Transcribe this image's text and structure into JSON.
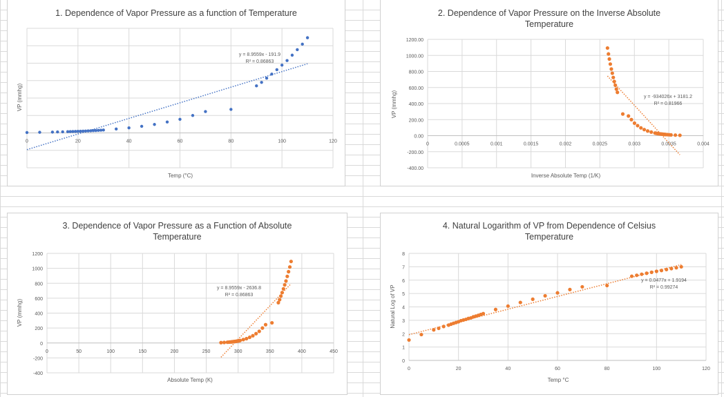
{
  "chart_data": [
    {
      "type": "scatter",
      "title": "1. Dependence of Vapor Pressure as a function of Temperature",
      "xlabel": "Temp (°C)",
      "ylabel": "VP (mmhg)",
      "xlim": [
        0,
        120
      ],
      "ylim": [
        -400,
        1200
      ],
      "xticks": [
        0,
        20,
        40,
        60,
        80,
        100,
        120
      ],
      "yticks": [
        -400,
        -200,
        0,
        200,
        400,
        600,
        800,
        1000,
        1200
      ],
      "ytick_labels_shown": false,
      "grid": true,
      "marker_color": "#4472c4",
      "trendline": {
        "slope": 8.9559,
        "intercept": -191.9,
        "xrange": [
          0,
          110
        ],
        "equation": "y = 8.9559x - 191.9",
        "r2": "R² = 0.86863"
      },
      "x": [
        0,
        5,
        10,
        12,
        14,
        16,
        17,
        18,
        19,
        20,
        21,
        22,
        23,
        24,
        25,
        26,
        27,
        28,
        29,
        30,
        35,
        40,
        45,
        50,
        55,
        60,
        65,
        70,
        80,
        90,
        92,
        94,
        96,
        98,
        100,
        102,
        104,
        106,
        108,
        110
      ],
      "y": [
        4.6,
        6.9,
        9.8,
        11,
        12.6,
        14,
        15,
        16,
        17,
        18,
        19.5,
        20.5,
        21.5,
        23,
        24,
        26,
        27.5,
        29,
        31,
        33,
        45,
        58,
        76,
        97,
        125,
        156,
        200,
        245,
        270,
        540,
        580,
        628,
        675,
        725,
        778,
        830,
        892,
        955,
        1018,
        1092
      ]
    },
    {
      "type": "scatter",
      "title": "2. Dependence of Vapor Pressure on the Inverse Absolute Temperature",
      "title_lines": [
        "2. Dependence of Vapor Pressure on the Inverse Absolute",
        "Temperature"
      ],
      "xlabel": "Inverse Absolute Temp (1/K)",
      "ylabel": "VP (mmhg)",
      "xlim": [
        0,
        0.004
      ],
      "ylim": [
        -400,
        1200
      ],
      "xticks": [
        "0",
        "0.0005",
        "0.001",
        "0.0015",
        "0.002",
        "0.0025",
        "0.003",
        "0.0035",
        "0.004"
      ],
      "yticks": [
        "-400.00",
        "-200.00",
        "0.00",
        "200.00",
        "400.00",
        "600.00",
        "800.00",
        "1000.00",
        "1200.00"
      ],
      "grid": true,
      "marker_color": "#ed7d31",
      "trendline": {
        "slope": -934026,
        "intercept": 3181.2,
        "xrange": [
          0.00261,
          0.00366
        ],
        "equation": "y = -934026x + 3181.2",
        "r2": "R² = 0.81966"
      },
      "x": [
        0.003661,
        0.003595,
        0.003532,
        0.003507,
        0.003482,
        0.003458,
        0.003447,
        0.003435,
        0.003423,
        0.003411,
        0.0034,
        0.003388,
        0.003377,
        0.003365,
        0.003354,
        0.003343,
        0.003332,
        0.003321,
        0.00331,
        0.003299,
        0.003245,
        0.003193,
        0.003143,
        0.003095,
        0.003047,
        0.003002,
        0.002957,
        0.002914,
        0.002832,
        0.002754,
        0.002739,
        0.002724,
        0.002709,
        0.002694,
        0.00268,
        0.002666,
        0.002651,
        0.002637,
        0.002624,
        0.00261
      ],
      "y": [
        4.6,
        6.9,
        9.8,
        11,
        12.6,
        14,
        15,
        16,
        17,
        18,
        19.5,
        20.5,
        21.5,
        23,
        24,
        26,
        27.5,
        29,
        31,
        33,
        45,
        58,
        76,
        97,
        125,
        156,
        200,
        245,
        270,
        540,
        580,
        628,
        675,
        725,
        778,
        830,
        892,
        955,
        1018,
        1092
      ]
    },
    {
      "type": "scatter",
      "title": "3. Dependence of Vapor Pressure as a Function of Absolute Temperature",
      "title_lines": [
        "3. Dependence of Vapor Pressure as a Function of Absolute",
        "Temperature"
      ],
      "xlabel": "Absolute Temp (K)",
      "ylabel": "VP (mmhg)",
      "xlim": [
        0,
        450
      ],
      "ylim": [
        -400,
        1200
      ],
      "xticks": [
        "0",
        "50",
        "100",
        "150",
        "200",
        "250",
        "300",
        "350",
        "400",
        "450"
      ],
      "yticks": [
        "-400",
        "-200",
        "0",
        "200",
        "400",
        "600",
        "800",
        "1000",
        "1200"
      ],
      "grid": true,
      "marker_color": "#ed7d31",
      "trendline": {
        "slope": 8.9559,
        "intercept": -2636.8,
        "xrange": [
          273.15,
          383.15
        ],
        "equation": "y = 8.9559x - 2636.8",
        "r2": "R² = 0.86863"
      },
      "x": [
        273.15,
        278.15,
        283.15,
        285.15,
        287.15,
        289.15,
        290.15,
        291.15,
        292.15,
        293.15,
        294.15,
        295.15,
        296.15,
        297.15,
        298.15,
        299.15,
        300.15,
        301.15,
        302.15,
        303.15,
        308.15,
        313.15,
        318.15,
        323.15,
        328.15,
        333.15,
        338.15,
        343.15,
        353.15,
        363.15,
        365.15,
        367.15,
        369.15,
        371.15,
        373.15,
        375.15,
        377.15,
        379.15,
        381.15,
        383.15
      ],
      "y": [
        4.6,
        6.9,
        9.8,
        11,
        12.6,
        14,
        15,
        16,
        17,
        18,
        19.5,
        20.5,
        21.5,
        23,
        24,
        26,
        27.5,
        29,
        31,
        33,
        45,
        58,
        76,
        97,
        125,
        156,
        200,
        245,
        270,
        540,
        580,
        628,
        675,
        725,
        778,
        830,
        892,
        955,
        1018,
        1092
      ]
    },
    {
      "type": "scatter",
      "title": "4. Natural Logarithm of VP from Dependence of Celsius Temperature",
      "title_lines": [
        "4. Natural Logarithm of VP from Dependence of Celsius",
        "Temperature"
      ],
      "xlabel": "Temp °C",
      "ylabel": "Natural Log of VP",
      "xlim": [
        0,
        120
      ],
      "ylim": [
        0,
        8
      ],
      "xticks": [
        "0",
        "20",
        "40",
        "60",
        "80",
        "100",
        "120"
      ],
      "yticks": [
        "0",
        "1",
        "2",
        "3",
        "4",
        "5",
        "6",
        "7",
        "8"
      ],
      "grid": true,
      "marker_color": "#ed7d31",
      "trendline": {
        "slope": 0.0477,
        "intercept": 1.9194,
        "xrange": [
          0,
          110
        ],
        "equation": "y = 0.0477x + 1.9194",
        "r2": "R² = 0.99274"
      },
      "x": [
        0,
        5,
        10,
        12,
        14,
        16,
        17,
        18,
        19,
        20,
        21,
        22,
        23,
        24,
        25,
        26,
        27,
        28,
        29,
        30,
        35,
        40,
        45,
        50,
        55,
        60,
        65,
        70,
        80,
        90,
        92,
        94,
        96,
        98,
        100,
        102,
        104,
        106,
        108,
        110
      ],
      "y": [
        1.526,
        1.932,
        2.282,
        2.398,
        2.534,
        2.639,
        2.708,
        2.773,
        2.833,
        2.89,
        2.97,
        3.02,
        3.068,
        3.135,
        3.178,
        3.258,
        3.314,
        3.367,
        3.434,
        3.497,
        3.807,
        4.06,
        4.331,
        4.575,
        4.828,
        5.05,
        5.298,
        5.501,
        5.598,
        6.292,
        6.363,
        6.443,
        6.515,
        6.586,
        6.657,
        6.721,
        6.794,
        6.862,
        6.926,
        6.996
      ]
    }
  ]
}
